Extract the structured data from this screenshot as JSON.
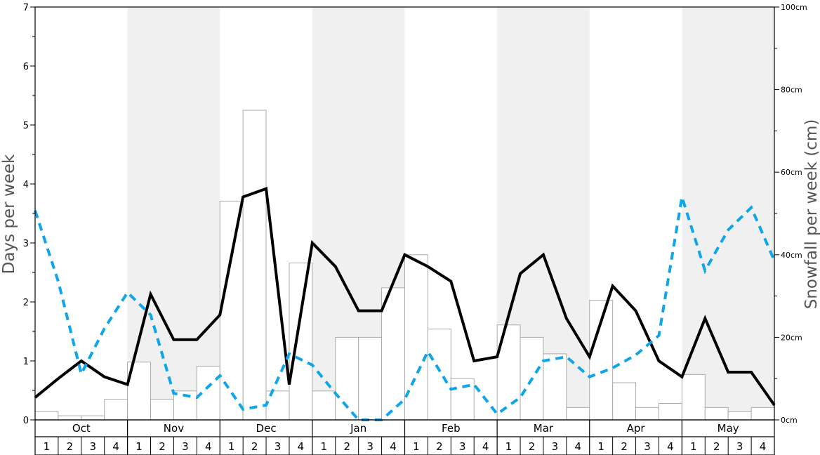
{
  "chart_data": {
    "type": "bar+line",
    "title": "",
    "ylabel_left": "Days per week",
    "ylabel_right": "Snowfall per week (cm)",
    "ylim_left": [
      0,
      7
    ],
    "ylim_right": [
      0,
      100
    ],
    "left_ticks": [
      "0",
      "1",
      "2",
      "3",
      "4",
      "5",
      "6",
      "7"
    ],
    "right_ticks": [
      "0cm",
      "20cm",
      "40cm",
      "60cm",
      "80cm",
      "100cm"
    ],
    "months": [
      "Oct",
      "Nov",
      "Dec",
      "Jan",
      "Feb",
      "Mar",
      "Apr",
      "May"
    ],
    "weeks": [
      "1",
      "2",
      "3",
      "4"
    ],
    "colors": {
      "bar_fill": "#ffffff",
      "bar_stroke": "#aaaaaa",
      "solid_line": "#000000",
      "dashed_line": "#0ea5e9",
      "shade": "#f0f0f0"
    },
    "series": [
      {
        "kind": "bar",
        "axis": "right",
        "values": [
          2,
          1,
          1,
          5,
          14,
          5,
          7,
          13,
          53,
          75,
          7,
          38,
          7,
          20,
          20,
          32,
          40,
          22,
          10,
          0,
          23,
          20,
          16,
          3,
          29,
          9,
          3,
          4,
          11,
          3,
          2,
          3
        ]
      },
      {
        "kind": "line",
        "style": "solid",
        "axis": "left",
        "values": [
          0.38,
          0.7,
          1.0,
          0.73,
          0.6,
          2.13,
          1.36,
          1.36,
          1.78,
          3.78,
          3.92,
          0.6,
          3.0,
          2.6,
          1.85,
          1.85,
          2.8,
          2.6,
          2.35,
          1.0,
          1.07,
          2.48,
          2.8,
          1.72,
          1.07,
          2.27,
          1.85,
          1.0,
          0.73,
          1.72,
          0.81,
          0.81,
          0.25
        ]
      },
      {
        "kind": "line",
        "style": "dashed",
        "axis": "left",
        "values": [
          3.55,
          2.35,
          0.78,
          1.55,
          2.16,
          1.78,
          0.45,
          0.38,
          0.75,
          0.18,
          0.25,
          1.12,
          0.93,
          0.45,
          0.0,
          0.0,
          0.35,
          1.16,
          0.52,
          0.6,
          0.1,
          0.38,
          1.0,
          1.07,
          0.73,
          0.88,
          1.1,
          1.43,
          3.78,
          2.53,
          3.22,
          3.6,
          2.7
        ]
      }
    ]
  }
}
